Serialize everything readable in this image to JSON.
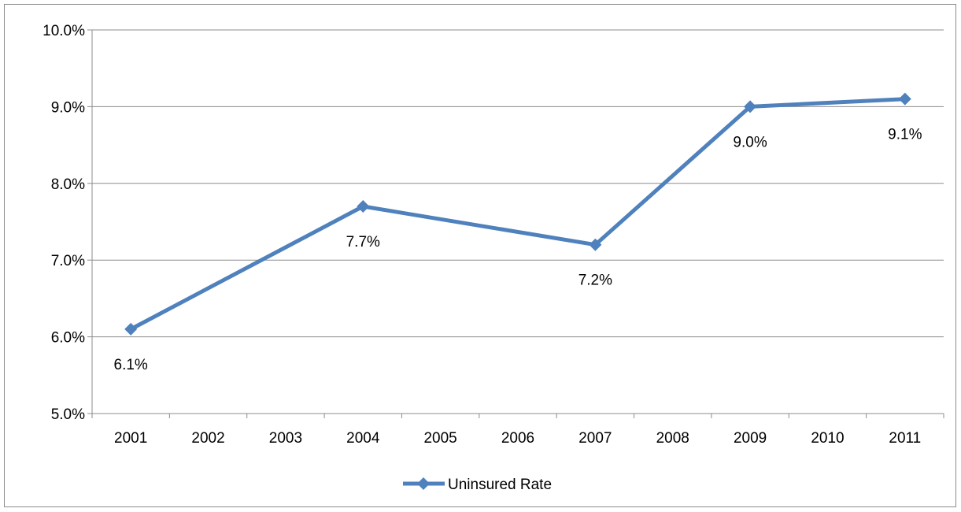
{
  "chart_data": {
    "type": "line",
    "title": "",
    "xlabel": "",
    "ylabel": "",
    "categories": [
      "2001",
      "2002",
      "2003",
      "2004",
      "2005",
      "2006",
      "2007",
      "2008",
      "2009",
      "2010",
      "2011"
    ],
    "series": [
      {
        "name": "Uninsured Rate",
        "color": "#4f81bd",
        "points": [
          {
            "x": "2001",
            "y": 6.1,
            "label": "6.1%"
          },
          {
            "x": "2004",
            "y": 7.7,
            "label": "7.7%"
          },
          {
            "x": "2007",
            "y": 7.2,
            "label": "7.2%"
          },
          {
            "x": "2009",
            "y": 9.0,
            "label": "9.0%"
          },
          {
            "x": "2011",
            "y": 9.1,
            "label": "9.1%"
          }
        ]
      }
    ],
    "ylim": [
      5.0,
      10.0
    ],
    "yticks": [
      "5.0%",
      "6.0%",
      "7.0%",
      "8.0%",
      "9.0%",
      "10.0%"
    ],
    "grid": true,
    "gridline_color": "#8c8c8c",
    "legend": "bottom",
    "marker": "diamond"
  }
}
